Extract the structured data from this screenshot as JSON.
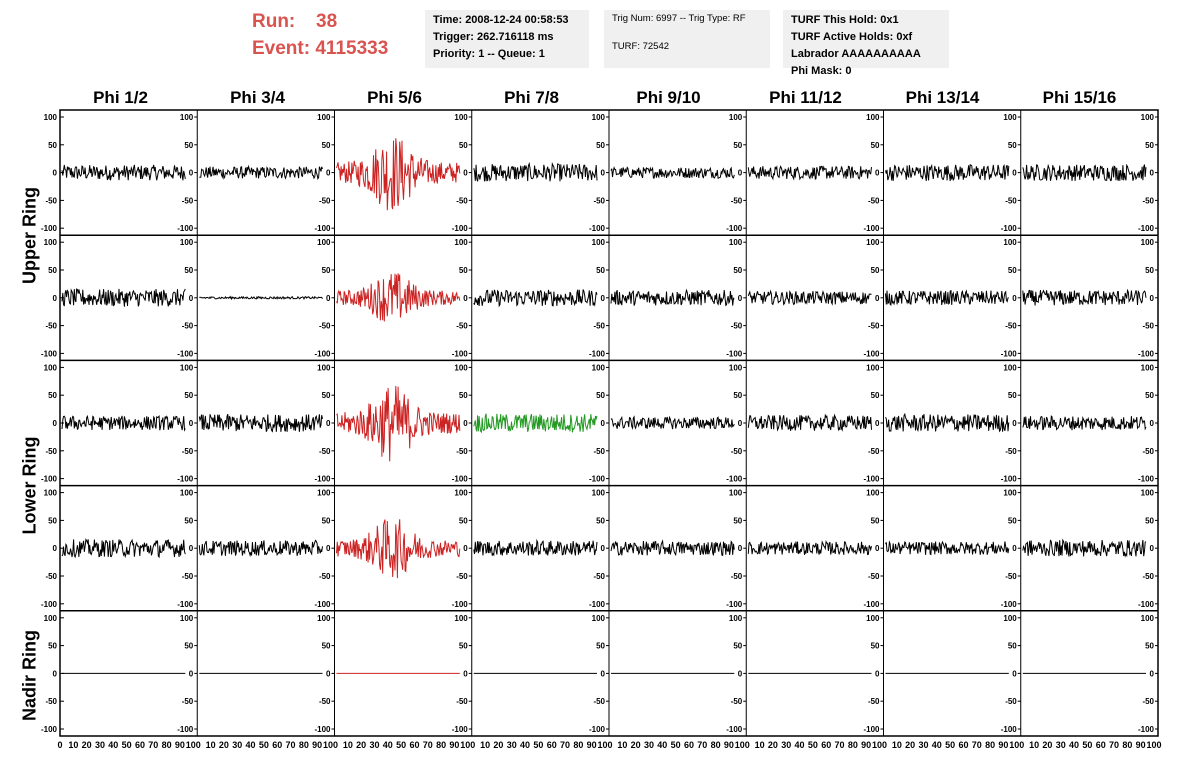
{
  "run": {
    "run_label": "Run:",
    "run_value": "38",
    "event_label": "Event:",
    "event_value": "4115333"
  },
  "info_time": {
    "line1": "Time: 2008-12-24 00:58:53",
    "line2": "Trigger: 262.716118 ms",
    "line3": "Priority: 1 -- Queue: 1"
  },
  "info_trig": {
    "line1": "Trig Num: 6997 -- Trig Type: RF",
    "line2": "TURF: 72542"
  },
  "info_turf": {
    "line1": "TURF This Hold: 0x1",
    "line2": "TURF Active Holds: 0xf",
    "line3": "Labrador AAAAAAAAAA",
    "line4": "Phi Mask: 0"
  },
  "columns": [
    "Phi 1/2",
    "Phi 3/4",
    "Phi 5/6",
    "Phi 7/8",
    "Phi 9/10",
    "Phi 11/12",
    "Phi 13/14",
    "Phi 15/16"
  ],
  "row_groups": [
    "Upper Ring",
    "Lower Ring",
    "Nadir Ring"
  ],
  "colors": {
    "normal": "#000000",
    "highlight": "#cc2222",
    "trigger": "#229922",
    "accent": "#d9534f"
  },
  "chart_data": {
    "type": "line",
    "xlim": [
      0,
      100
    ],
    "ylim": [
      -100,
      100
    ],
    "yticks": [
      "100",
      "50",
      "0",
      "-50",
      "-100"
    ],
    "xticks": [
      "0",
      "10",
      "20",
      "30",
      "40",
      "50",
      "60",
      "70",
      "80",
      "90",
      "100"
    ],
    "rows": [
      {
        "amps": [
          14,
          11,
          38,
          16,
          10,
          12,
          15,
          15
        ],
        "colors": [
          "normal",
          "normal",
          "highlight",
          "normal",
          "normal",
          "normal",
          "normal",
          "normal"
        ]
      },
      {
        "amps": [
          16,
          2,
          26,
          15,
          14,
          12,
          13,
          14
        ],
        "colors": [
          "normal",
          "normal",
          "highlight",
          "normal",
          "normal",
          "normal",
          "normal",
          "normal"
        ]
      },
      {
        "amps": [
          13,
          16,
          38,
          17,
          11,
          14,
          16,
          13
        ],
        "colors": [
          "normal",
          "normal",
          "highlight",
          "trigger",
          "normal",
          "normal",
          "normal",
          "normal"
        ]
      },
      {
        "amps": [
          16,
          14,
          30,
          14,
          13,
          12,
          12,
          15
        ],
        "colors": [
          "normal",
          "normal",
          "highlight",
          "normal",
          "normal",
          "normal",
          "normal",
          "normal"
        ]
      },
      {
        "amps": [
          0,
          0,
          0,
          0,
          0,
          0,
          0,
          0
        ],
        "colors": [
          "normal",
          "normal",
          "highlight",
          "normal",
          "normal",
          "normal",
          "normal",
          "normal"
        ]
      }
    ]
  }
}
